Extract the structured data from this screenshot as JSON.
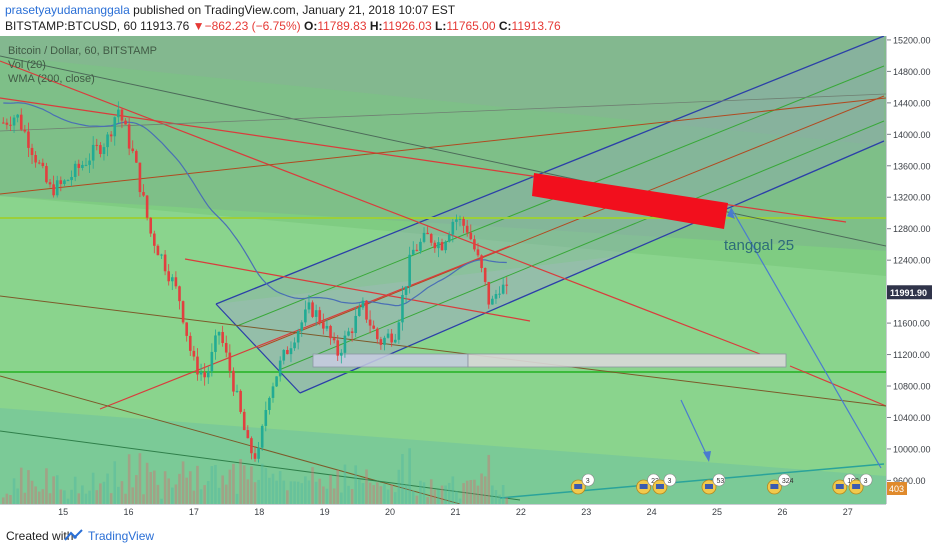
{
  "header": {
    "author": "prasetyayudamanggala",
    "published_text": " published on TradingView.com, January 21, 2018 10:07 EST",
    "symbol": "BITSTAMP:BTCUSD, 60",
    "last": "11913.76",
    "change_arrow": "▼",
    "change": "−862.23 (−6.75%)",
    "o_label": "O:",
    "o_value": "11789.83",
    "h_label": "H:",
    "h_value": "11926.03",
    "l_label": "L:",
    "l_value": "11765.00",
    "c_label": "C:",
    "c_value": "11913.76"
  },
  "legend": {
    "title": "Bitcoin / Dollar, 60, BITSTAMP",
    "vol": "Vol (20)",
    "wma": "WMA (200, close)"
  },
  "annotation": {
    "text": "tanggal 25"
  },
  "footer": {
    "created_with": "Created with",
    "brand": "TradingView"
  },
  "colors": {
    "background_green": "#8ad48d",
    "channel_blue": "#2b3fa8",
    "trend_red": "#d93c3c",
    "candle_up": "#22ab94",
    "candle_down": "#e23f3f",
    "wma_blue": "#4a6fb5",
    "support_green": "#3cba3c",
    "resistance_zone": "#f20f1d"
  },
  "chart_data": {
    "type": "candlestick",
    "ylim": [
      9300,
      15250
    ],
    "y_ticks": [
      "15200.00",
      "14800.00",
      "14400.00",
      "14000.00",
      "13600.00",
      "13200.00",
      "12800.00",
      "12400.00",
      "12000.00",
      "11600.00",
      "11200.00",
      "10800.00",
      "10400.00",
      "10000.00",
      "9600.00"
    ],
    "y_tick_values": [
      15200,
      14800,
      14400,
      14000,
      13600,
      13200,
      12800,
      12400,
      12000,
      11600,
      11200,
      10800,
      10400,
      10000,
      9600
    ],
    "x_ticks": [
      "15",
      "16",
      "17",
      "18",
      "19",
      "20",
      "21",
      "22",
      "23",
      "24",
      "25",
      "26",
      "27"
    ],
    "x_tick_values": [
      15,
      16,
      17,
      18,
      19,
      20,
      21,
      22,
      23,
      24,
      25,
      26,
      27
    ],
    "xlim": [
      14.05,
      27.6
    ],
    "price_label": "11991.90",
    "volume_label": "403",
    "horizontal_levels": [
      12900,
      10920
    ],
    "candle_keypoints": [
      [
        14.1,
        14150
      ],
      [
        14.3,
        14250
      ],
      [
        14.5,
        13900
      ],
      [
        14.8,
        13300
      ],
      [
        15.0,
        13350
      ],
      [
        15.4,
        13700
      ],
      [
        15.7,
        13950
      ],
      [
        15.85,
        14350
      ],
      [
        16.1,
        13700
      ],
      [
        16.35,
        12750
      ],
      [
        16.6,
        12300
      ],
      [
        16.8,
        11900
      ],
      [
        17.0,
        11100
      ],
      [
        17.2,
        10900
      ],
      [
        17.4,
        11500
      ],
      [
        17.6,
        10900
      ],
      [
        17.85,
        10000
      ],
      [
        18.0,
        9900
      ],
      [
        18.15,
        10700
      ],
      [
        18.35,
        11100
      ],
      [
        18.55,
        11450
      ],
      [
        18.8,
        11800
      ],
      [
        19.0,
        11600
      ],
      [
        19.2,
        11200
      ],
      [
        19.4,
        11500
      ],
      [
        19.6,
        11800
      ],
      [
        19.85,
        11350
      ],
      [
        20.1,
        11500
      ],
      [
        20.35,
        12500
      ],
      [
        20.6,
        12700
      ],
      [
        20.8,
        12600
      ],
      [
        21.0,
        12950
      ],
      [
        21.2,
        12800
      ],
      [
        21.4,
        12300
      ],
      [
        21.55,
        11800
      ],
      [
        21.7,
        12100
      ],
      [
        21.85,
        11914
      ]
    ],
    "events": [
      {
        "x": 23,
        "badge": "3"
      },
      {
        "x": 24,
        "badge": "23"
      },
      {
        "x": 24.25,
        "badge": "3"
      },
      {
        "x": 25,
        "badge": "53"
      },
      {
        "x": 26,
        "badge": "324"
      },
      {
        "x": 27,
        "badge": "102"
      },
      {
        "x": 27.25,
        "badge": "3"
      }
    ]
  }
}
